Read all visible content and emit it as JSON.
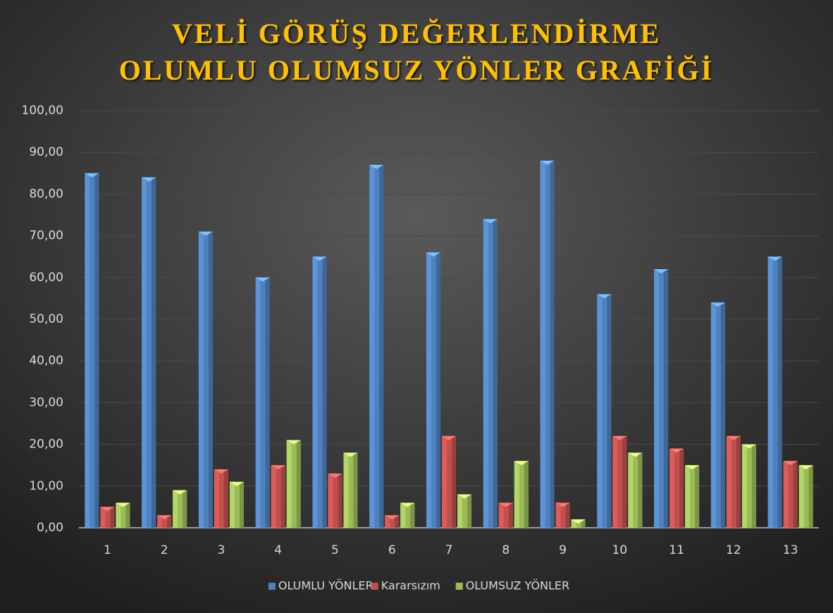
{
  "chart_data": {
    "type": "bar",
    "title": [
      "VELİ GÖRÜŞ DEĞERLENDİRME",
      "OLUMLU OLUMSUZ YÖNLER GRAFİĞİ"
    ],
    "categories": [
      "1",
      "2",
      "3",
      "4",
      "5",
      "6",
      "7",
      "8",
      "9",
      "10",
      "11",
      "12",
      "13"
    ],
    "series": [
      {
        "name": "OLUMLU YÖNLER",
        "color": "#4f81bd",
        "values": [
          85,
          84,
          71,
          60,
          65,
          87,
          66,
          74,
          88,
          56,
          62,
          54,
          65
        ]
      },
      {
        "name": "Kararsızım",
        "color": "#c0504d",
        "values": [
          5,
          3,
          14,
          15,
          13,
          3,
          22,
          6,
          6,
          22,
          19,
          22,
          16
        ]
      },
      {
        "name": "OLUMSUZ YÖNLER",
        "color": "#9bbb59",
        "values": [
          6,
          9,
          11,
          21,
          18,
          6,
          8,
          16,
          2,
          18,
          15,
          20,
          15
        ]
      }
    ],
    "ylim": [
      0,
      100
    ],
    "yticks": [
      {
        "value": 0,
        "label": "0,00"
      },
      {
        "value": 10,
        "label": "10,00"
      },
      {
        "value": 20,
        "label": "20,00"
      },
      {
        "value": 30,
        "label": "30,00"
      },
      {
        "value": 40,
        "label": "40,00"
      },
      {
        "value": 50,
        "label": "50,00"
      },
      {
        "value": 60,
        "label": "60,00"
      },
      {
        "value": 70,
        "label": "70,00"
      },
      {
        "value": 80,
        "label": "80,00"
      },
      {
        "value": 90,
        "label": "90,00"
      },
      {
        "value": 100,
        "label": "100,00"
      }
    ],
    "grid": true,
    "legend": "bottom"
  }
}
